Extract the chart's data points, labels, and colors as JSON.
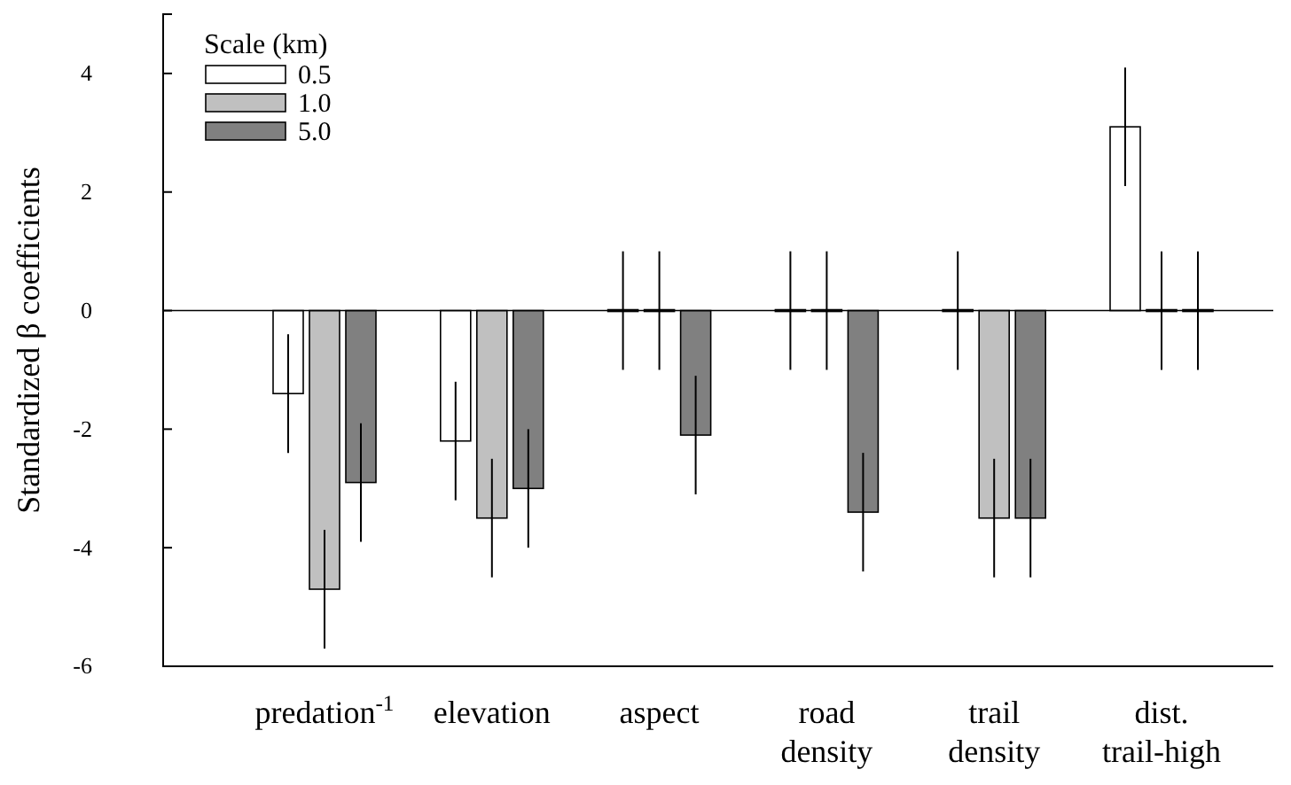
{
  "chart_data": {
    "type": "bar",
    "ylabel": "Standardized β coefficients",
    "legend_title": "Scale (km)",
    "legend": "top left",
    "categories": [
      "predation$^{-1}$",
      "elevation",
      "aspect",
      "road density",
      "trail density",
      "dist. trail-high"
    ],
    "series": [
      {
        "name": "0.5",
        "color": "#ffffff",
        "values": [
          -1.4,
          -2.2,
          0,
          0,
          0,
          3.1
        ],
        "errors": [
          1,
          1,
          1,
          1,
          1,
          1
        ]
      },
      {
        "name": "1.0",
        "color": "#c0c0c0",
        "values": [
          -4.7,
          -3.5,
          0,
          0,
          -3.5,
          0
        ],
        "errors": [
          1,
          1,
          1,
          1,
          1,
          1
        ]
      },
      {
        "name": "5.0",
        "color": "#808080",
        "values": [
          -2.9,
          -3.0,
          -2.1,
          -3.4,
          -3.5,
          0
        ],
        "errors": [
          1,
          1,
          1,
          1,
          1,
          1
        ]
      }
    ],
    "ylim": [
      -6,
      5
    ],
    "yticks": [
      -6,
      -4,
      -2,
      0,
      2,
      4
    ],
    "ref_lines": [
      {
        "axis": "y",
        "value": 0,
        "color": "#000000"
      }
    ]
  }
}
